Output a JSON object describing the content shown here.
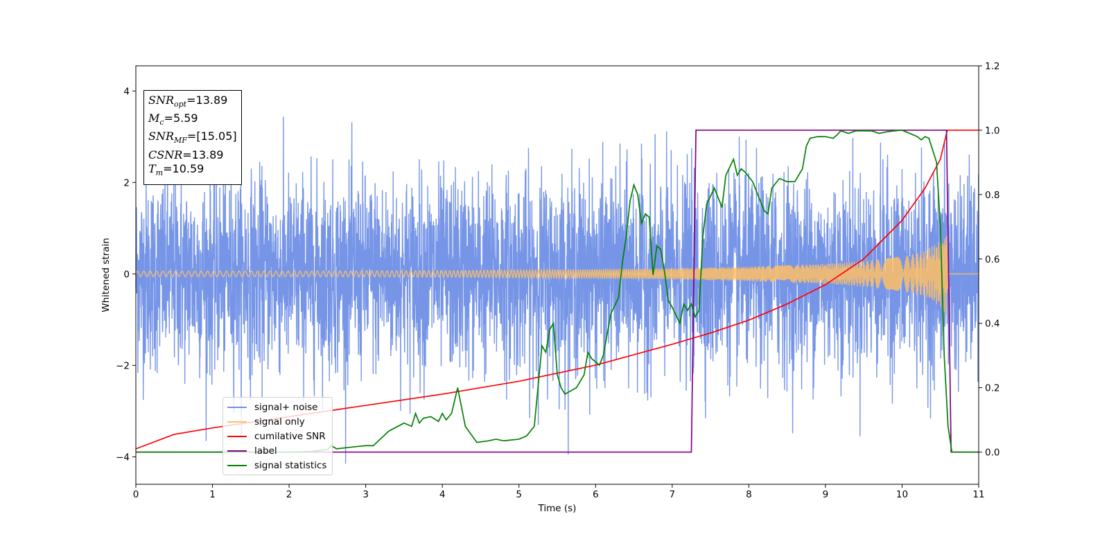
{
  "chart_data": {
    "type": "line",
    "xlabel": "Time (s)",
    "ylabel": "Whitened strain",
    "xlim": [
      0,
      11
    ],
    "ylim_left": [
      -4.6,
      4.55
    ],
    "ylim_right": [
      -0.1,
      1.2
    ],
    "x_ticks": [
      "0",
      "1",
      "2",
      "3",
      "4",
      "5",
      "6",
      "7",
      "8",
      "9",
      "10",
      "11"
    ],
    "y_ticks_left": [
      "4",
      "2",
      "0",
      "−2",
      "−4"
    ],
    "y_ticks_right": [
      "1.2",
      "1.0",
      "0.8",
      "0.6",
      "0.4",
      "0.2",
      "0.0"
    ],
    "x_tick_values": [
      0,
      1,
      2,
      3,
      4,
      5,
      6,
      7,
      8,
      9,
      10,
      11
    ],
    "y_tick_values_left": [
      4,
      2,
      0,
      -2,
      -4
    ],
    "y_tick_values_right": [
      1.2,
      1.0,
      0.8,
      0.6,
      0.4,
      0.2,
      0.0
    ],
    "annotation": {
      "snr_opt": "=13.89",
      "mc": "=5.59",
      "snr_mf": "=[15.05]",
      "csnr": "=13.89",
      "tm": "=10.59"
    },
    "series": [
      {
        "name": "signal+ noise",
        "color": "#6f8fe6",
        "axis": "left",
        "description_amplitude_std": 1.05
      },
      {
        "name": "signal only",
        "color": "#ffbf66",
        "axis": "left",
        "envelope": {
          "x": [
            0,
            2,
            4,
            6,
            7,
            8,
            9,
            9.5,
            10,
            10.3,
            10.5,
            10.59,
            10.6,
            11
          ],
          "amp": [
            0.06,
            0.06,
            0.07,
            0.1,
            0.12,
            0.16,
            0.22,
            0.28,
            0.38,
            0.5,
            0.72,
            0.95,
            0,
            0
          ]
        }
      },
      {
        "name": "cumilative SNR",
        "color": "#ff0000",
        "axis": "right",
        "x": [
          0,
          0.5,
          1,
          2,
          3,
          4,
          5,
          6,
          7,
          7.5,
          8,
          8.5,
          9,
          9.5,
          10,
          10.3,
          10.5,
          10.59,
          11
        ],
        "y": [
          0.01,
          0.055,
          0.075,
          0.11,
          0.145,
          0.18,
          0.22,
          0.27,
          0.335,
          0.37,
          0.41,
          0.46,
          0.52,
          0.6,
          0.72,
          0.82,
          0.91,
          1.0,
          1.0
        ]
      },
      {
        "name": "label",
        "color": "#800080",
        "axis": "right",
        "x": [
          0,
          7.25,
          7.31,
          10.58,
          10.64,
          11
        ],
        "y": [
          0,
          0,
          1,
          1,
          0,
          0
        ]
      },
      {
        "name": "signal statistics",
        "color": "#008000",
        "axis": "right",
        "x": [
          0,
          0.5,
          1,
          1.5,
          2,
          2.3,
          2.5,
          2.55,
          2.62,
          2.8,
          3.0,
          3.1,
          3.3,
          3.5,
          3.6,
          3.65,
          3.7,
          3.75,
          3.85,
          3.95,
          4.0,
          4.05,
          4.12,
          4.2,
          4.3,
          4.45,
          4.6,
          4.7,
          4.8,
          5.0,
          5.1,
          5.2,
          5.3,
          5.35,
          5.4,
          5.45,
          5.5,
          5.55,
          5.6,
          5.75,
          5.85,
          5.9,
          5.95,
          6.05,
          6.1,
          6.2,
          6.3,
          6.35,
          6.4,
          6.45,
          6.5,
          6.55,
          6.6,
          6.65,
          6.7,
          6.75,
          6.8,
          6.85,
          6.9,
          6.95,
          7.0,
          7.1,
          7.15,
          7.2,
          7.25,
          7.3,
          7.35,
          7.4,
          7.45,
          7.55,
          7.6,
          7.65,
          7.7,
          7.8,
          7.85,
          7.9,
          7.95,
          8.05,
          8.15,
          8.2,
          8.25,
          8.3,
          8.4,
          8.5,
          8.6,
          8.7,
          8.75,
          8.8,
          8.9,
          9.0,
          9.1,
          9.15,
          9.2,
          9.3,
          9.4,
          9.5,
          9.6,
          9.7,
          9.8,
          9.9,
          10.0,
          10.1,
          10.2,
          10.25,
          10.3,
          10.35,
          10.45,
          10.5,
          10.55,
          10.6,
          10.65,
          10.75,
          11.0
        ],
        "y": [
          0.0,
          0.0,
          0.0,
          0.0,
          0.0,
          0.002,
          0.008,
          0.02,
          0.01,
          0.015,
          0.02,
          0.02,
          0.065,
          0.09,
          0.08,
          0.12,
          0.09,
          0.105,
          0.11,
          0.095,
          0.12,
          0.1,
          0.12,
          0.2,
          0.08,
          0.03,
          0.035,
          0.04,
          0.035,
          0.04,
          0.05,
          0.08,
          0.33,
          0.31,
          0.38,
          0.4,
          0.24,
          0.2,
          0.18,
          0.2,
          0.24,
          0.31,
          0.29,
          0.27,
          0.3,
          0.43,
          0.48,
          0.59,
          0.67,
          0.78,
          0.83,
          0.8,
          0.71,
          0.74,
          0.73,
          0.55,
          0.64,
          0.63,
          0.56,
          0.47,
          0.45,
          0.4,
          0.46,
          0.44,
          0.46,
          0.42,
          0.44,
          0.67,
          0.77,
          0.82,
          0.79,
          0.76,
          0.86,
          0.91,
          0.86,
          0.88,
          0.87,
          0.84,
          0.78,
          0.75,
          0.74,
          0.82,
          0.85,
          0.84,
          0.84,
          0.88,
          0.95,
          0.975,
          0.98,
          0.98,
          0.975,
          0.985,
          0.998,
          0.99,
          0.998,
          0.998,
          0.998,
          0.99,
          0.995,
          0.998,
          1.0,
          0.99,
          0.98,
          0.97,
          0.98,
          0.975,
          0.9,
          0.7,
          0.3,
          0.08,
          0.0,
          0.0,
          0.0
        ]
      }
    ]
  }
}
